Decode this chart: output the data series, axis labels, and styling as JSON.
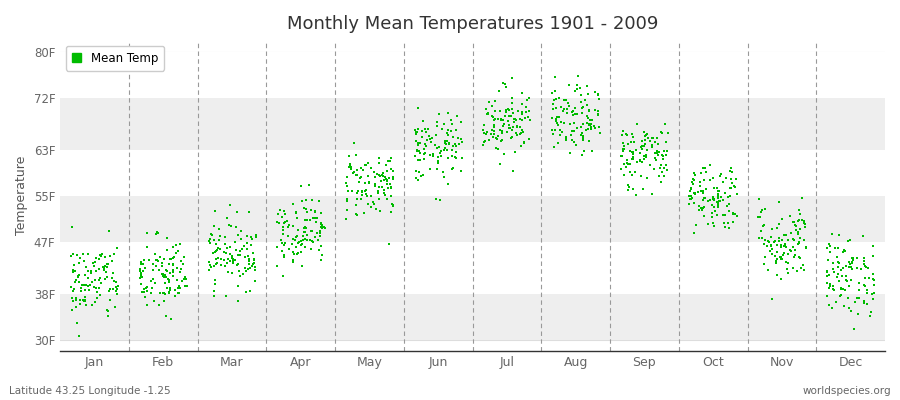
{
  "title": "Monthly Mean Temperatures 1901 - 2009",
  "ylabel": "Temperature",
  "xlabel_labels": [
    "Jan",
    "Feb",
    "Mar",
    "Apr",
    "May",
    "Jun",
    "Jul",
    "Aug",
    "Sep",
    "Oct",
    "Nov",
    "Dec"
  ],
  "footer_left": "Latitude 43.25 Longitude -1.25",
  "footer_right": "worldspecies.org",
  "legend_label": "Mean Temp",
  "dot_color": "#00BB00",
  "background_color": "#FFFFFF",
  "plot_bg_color": "#FFFFFF",
  "ytick_labels": [
    "30F",
    "38F",
    "47F",
    "55F",
    "63F",
    "72F",
    "80F"
  ],
  "ytick_values": [
    30,
    38,
    47,
    55,
    63,
    72,
    80
  ],
  "ylim": [
    28,
    82
  ],
  "num_years": 109,
  "monthly_means_F": [
    40,
    41,
    45,
    49,
    57,
    63,
    68,
    68,
    62,
    55,
    47,
    41
  ],
  "monthly_stds_F": [
    3.5,
    3.5,
    3.0,
    3.0,
    3.0,
    3.0,
    3.0,
    3.0,
    3.0,
    3.0,
    3.5,
    3.5
  ]
}
